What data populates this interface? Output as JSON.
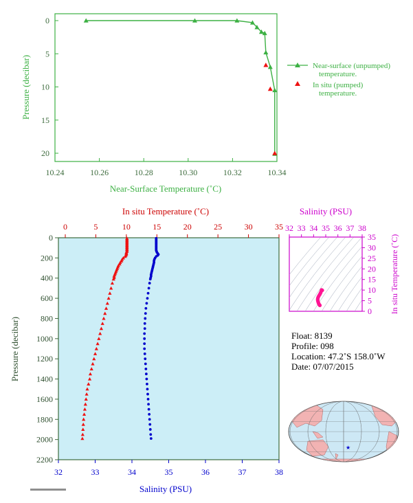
{
  "chart_data": [
    {
      "id": "near-surface",
      "type": "line",
      "xlabel": "Near-Surface Temperature (˚C)",
      "ylabel": "Pressure (decibar)",
      "xlim": [
        10.24,
        10.34
      ],
      "ylim": [
        0,
        22
      ],
      "y_inverted": true,
      "xticks": [
        10.24,
        10.26,
        10.28,
        10.3,
        10.32,
        10.34
      ],
      "yticks": [
        0,
        5,
        10,
        15,
        20
      ],
      "legend_position": "right",
      "series": [
        {
          "name": "Near-surface (unpumped) temperature.",
          "color": "#3cb043",
          "marker": "triangle",
          "x": [
            10.254,
            10.303,
            10.322,
            10.329,
            10.331,
            10.333,
            10.3345,
            10.335,
            10.337,
            10.339,
            10.339
          ],
          "y": [
            0.0,
            0.0,
            0.0,
            0.3,
            1.0,
            1.7,
            1.9,
            4.8,
            7.0,
            10.5,
            20.1
          ]
        },
        {
          "name": "In situ (pumped) temperature.",
          "color": "#ee1111",
          "marker": "triangle",
          "x": [
            10.335,
            10.337,
            10.339
          ],
          "y": [
            6.7,
            10.3,
            20.0
          ]
        }
      ]
    },
    {
      "id": "profile",
      "type": "scatter",
      "title_top": "In situ Temperature (˚C)",
      "xlabel": "Salinity (PSU)",
      "ylabel": "Pressure (decibar)",
      "temp_xlim": [
        0,
        35
      ],
      "temp_xticks": [
        0,
        5,
        10,
        15,
        20,
        25,
        30,
        35
      ],
      "sal_xlim": [
        32,
        38
      ],
      "sal_xticks": [
        32,
        33,
        34,
        35,
        36,
        37,
        38
      ],
      "ylim": [
        0,
        2200
      ],
      "y_inverted": true,
      "yticks": [
        0,
        200,
        400,
        600,
        800,
        1000,
        1200,
        1400,
        1600,
        1800,
        2000,
        2200
      ],
      "series": [
        {
          "name": "In situ Temperature",
          "color": "#ee1111",
          "marker": "triangle",
          "points": [
            [
              10.1,
              5
            ],
            [
              10.1,
              15
            ],
            [
              10.1,
              25
            ],
            [
              10.1,
              35
            ],
            [
              10.1,
              45
            ],
            [
              10.1,
              55
            ],
            [
              10.1,
              65
            ],
            [
              10.1,
              75
            ],
            [
              10.1,
              85
            ],
            [
              10.1,
              95
            ],
            [
              10.1,
              105
            ],
            [
              10.1,
              115
            ],
            [
              10.1,
              125
            ],
            [
              10.1,
              135
            ],
            [
              10.0,
              145
            ],
            [
              10.0,
              155
            ],
            [
              10.0,
              165
            ],
            [
              9.9,
              175
            ],
            [
              9.8,
              185
            ],
            [
              9.5,
              200
            ],
            [
              9.3,
              215
            ],
            [
              9.2,
              230
            ],
            [
              9.0,
              245
            ],
            [
              8.9,
              260
            ],
            [
              8.7,
              275
            ],
            [
              8.6,
              290
            ],
            [
              8.5,
              305
            ],
            [
              8.4,
              320
            ],
            [
              8.3,
              335
            ],
            [
              8.2,
              350
            ],
            [
              8.1,
              365
            ],
            [
              8.0,
              380
            ],
            [
              8.0,
              395
            ],
            [
              7.9,
              410
            ],
            [
              7.7,
              450
            ],
            [
              7.5,
              500
            ],
            [
              7.3,
              550
            ],
            [
              7.1,
              600
            ],
            [
              6.9,
              650
            ],
            [
              6.7,
              700
            ],
            [
              6.5,
              750
            ],
            [
              6.3,
              800
            ],
            [
              6.1,
              850
            ],
            [
              5.9,
              900
            ],
            [
              5.7,
              950
            ],
            [
              5.5,
              1000
            ],
            [
              5.3,
              1050
            ],
            [
              5.1,
              1100
            ],
            [
              4.9,
              1150
            ],
            [
              4.7,
              1200
            ],
            [
              4.5,
              1250
            ],
            [
              4.3,
              1300
            ],
            [
              4.1,
              1350
            ],
            [
              4.0,
              1400
            ],
            [
              3.8,
              1450
            ],
            [
              3.6,
              1500
            ],
            [
              3.5,
              1550
            ],
            [
              3.4,
              1600
            ],
            [
              3.3,
              1650
            ],
            [
              3.2,
              1700
            ],
            [
              3.1,
              1750
            ],
            [
              3.0,
              1800
            ],
            [
              2.95,
              1850
            ],
            [
              2.9,
              1900
            ],
            [
              2.85,
              1950
            ],
            [
              2.8,
              1990
            ]
          ]
        },
        {
          "name": "Salinity",
          "color": "#0000cc",
          "marker": "circle",
          "points": [
            [
              34.66,
              5
            ],
            [
              34.66,
              15
            ],
            [
              34.66,
              25
            ],
            [
              34.66,
              35
            ],
            [
              34.66,
              45
            ],
            [
              34.66,
              55
            ],
            [
              34.66,
              65
            ],
            [
              34.66,
              75
            ],
            [
              34.66,
              85
            ],
            [
              34.66,
              95
            ],
            [
              34.66,
              105
            ],
            [
              34.66,
              115
            ],
            [
              34.66,
              125
            ],
            [
              34.67,
              135
            ],
            [
              34.68,
              145
            ],
            [
              34.7,
              155
            ],
            [
              34.72,
              165
            ],
            [
              34.7,
              175
            ],
            [
              34.66,
              185
            ],
            [
              34.63,
              200
            ],
            [
              34.61,
              215
            ],
            [
              34.6,
              230
            ],
            [
              34.6,
              245
            ],
            [
              34.59,
              260
            ],
            [
              34.58,
              275
            ],
            [
              34.57,
              290
            ],
            [
              34.56,
              305
            ],
            [
              34.55,
              320
            ],
            [
              34.54,
              335
            ],
            [
              34.53,
              350
            ],
            [
              34.52,
              365
            ],
            [
              34.52,
              380
            ],
            [
              34.51,
              395
            ],
            [
              34.5,
              410
            ],
            [
              34.48,
              450
            ],
            [
              34.46,
              500
            ],
            [
              34.44,
              550
            ],
            [
              34.42,
              600
            ],
            [
              34.4,
              650
            ],
            [
              34.38,
              700
            ],
            [
              34.37,
              750
            ],
            [
              34.36,
              800
            ],
            [
              34.35,
              850
            ],
            [
              34.35,
              900
            ],
            [
              34.34,
              950
            ],
            [
              34.34,
              1000
            ],
            [
              34.34,
              1050
            ],
            [
              34.34,
              1100
            ],
            [
              34.35,
              1150
            ],
            [
              34.36,
              1200
            ],
            [
              34.37,
              1250
            ],
            [
              34.38,
              1300
            ],
            [
              34.39,
              1350
            ],
            [
              34.4,
              1400
            ],
            [
              34.41,
              1450
            ],
            [
              34.42,
              1500
            ],
            [
              34.43,
              1550
            ],
            [
              34.44,
              1600
            ],
            [
              34.45,
              1650
            ],
            [
              34.46,
              1700
            ],
            [
              34.47,
              1750
            ],
            [
              34.48,
              1800
            ],
            [
              34.49,
              1850
            ],
            [
              34.5,
              1900
            ],
            [
              34.51,
              1950
            ],
            [
              34.52,
              1990
            ]
          ]
        }
      ]
    },
    {
      "id": "ts-diagram",
      "type": "scatter",
      "title": "Salinity (PSU)",
      "ylabel": "In situ Temperature (˚C)",
      "xlim": [
        32,
        38
      ],
      "xticks": [
        32,
        33,
        34,
        35,
        36,
        37,
        38
      ],
      "ylim": [
        0,
        35
      ],
      "yticks": [
        0,
        5,
        10,
        15,
        20,
        25,
        30,
        35
      ],
      "series": [
        {
          "name": "T-S",
          "color": "#ff1493",
          "points": [
            [
              34.66,
              10.1
            ],
            [
              34.68,
              10.0
            ],
            [
              34.72,
              9.9
            ],
            [
              34.63,
              9.5
            ],
            [
              34.6,
              9.0
            ],
            [
              34.57,
              8.6
            ],
            [
              34.54,
              8.3
            ],
            [
              34.52,
              8.0
            ],
            [
              34.48,
              7.7
            ],
            [
              34.44,
              7.3
            ],
            [
              34.4,
              6.9
            ],
            [
              34.37,
              6.5
            ],
            [
              34.35,
              6.1
            ],
            [
              34.34,
              5.7
            ],
            [
              34.34,
              5.3
            ],
            [
              34.35,
              4.9
            ],
            [
              34.37,
              4.5
            ],
            [
              34.39,
              4.1
            ],
            [
              34.41,
              3.8
            ],
            [
              34.43,
              3.5
            ],
            [
              34.45,
              3.3
            ],
            [
              34.47,
              3.1
            ],
            [
              34.49,
              2.95
            ],
            [
              34.51,
              2.85
            ],
            [
              34.52,
              2.8
            ]
          ]
        }
      ]
    }
  ],
  "info": {
    "float": "Float:  8139",
    "profile": "Profile:  098",
    "location": "Location:  47.2˚S  158.0˚W",
    "date": "Date:  07/07/2015"
  },
  "map": {
    "marker_lon": -158.0,
    "marker_lat": -47.2
  }
}
